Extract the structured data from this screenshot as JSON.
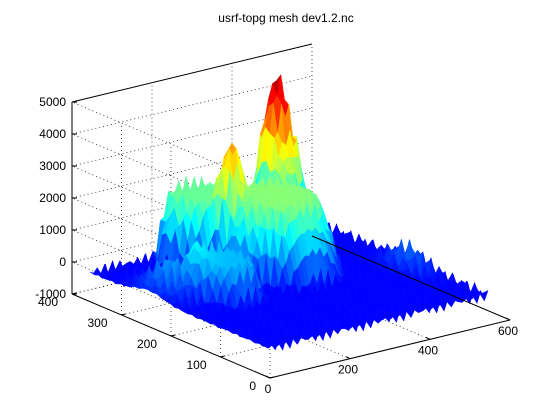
{
  "chart_data": {
    "type": "surface",
    "title": "usrf-topg mesh dev1.2.nc",
    "xlabel": "",
    "ylabel": "",
    "zlabel": "",
    "grid": true,
    "colormap": "jet",
    "xlim": [
      0,
      600
    ],
    "ylim": [
      0,
      400
    ],
    "zlim": [
      -1000,
      5000
    ],
    "x_ticks": [
      "0",
      "200",
      "400",
      "600"
    ],
    "y_ticks": [
      "0",
      "100",
      "200",
      "300",
      "400"
    ],
    "z_ticks": [
      "-1000",
      "0",
      "1000",
      "2000",
      "3000",
      "4000",
      "5000"
    ],
    "features": [
      {
        "x": 250,
        "y": 330,
        "z_peak": 1800,
        "label": ""
      },
      {
        "x": 320,
        "y": 260,
        "z_peak": 2500,
        "label": ""
      },
      {
        "x": 430,
        "y": 340,
        "z_peak": 5000,
        "label": ""
      },
      {
        "x": 160,
        "y": 200,
        "z_peak": 700,
        "label": ""
      },
      {
        "x": 560,
        "y": 150,
        "z_peak": 300,
        "label": ""
      }
    ]
  }
}
